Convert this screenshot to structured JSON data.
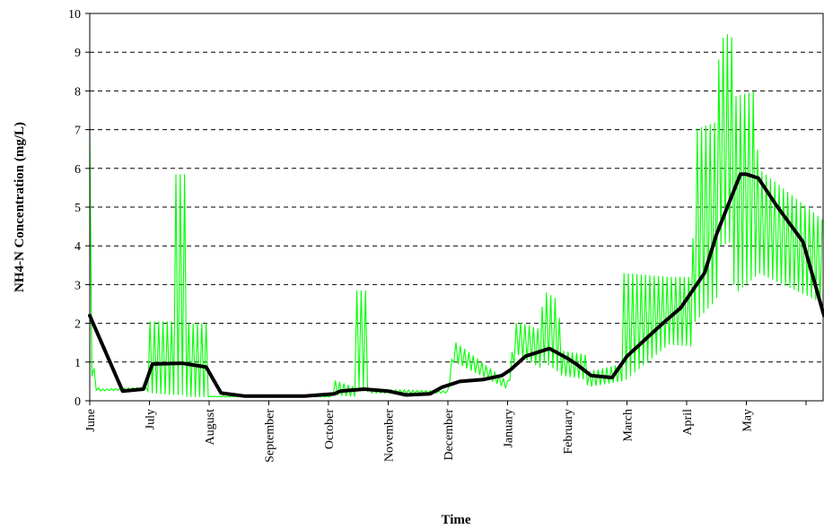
{
  "chart_data": {
    "type": "line",
    "title": "",
    "xlabel": "Time",
    "ylabel": "NH4-N Concentration (mg/L)",
    "ylim": [
      0,
      10
    ],
    "yticks": [
      0,
      1,
      2,
      3,
      4,
      5,
      6,
      7,
      8,
      9,
      10
    ],
    "grid": "horizontal dashed",
    "x_months": [
      "June",
      "July",
      "August",
      "September",
      "October",
      "November",
      "December",
      "January",
      "February",
      "March",
      "April",
      "May"
    ],
    "series": [
      {
        "color": "#00ff00",
        "style": "high-frequency oscillating envelope",
        "envelope": [
          {
            "t": 0.0,
            "lo": 1.5,
            "hi": 7.0
          },
          {
            "t": 0.05,
            "lo": 0.3,
            "hi": 1.0
          },
          {
            "t": 0.15,
            "lo": 0.25,
            "hi": 0.3
          },
          {
            "t": 0.95,
            "lo": 0.3,
            "hi": 0.35
          },
          {
            "t": 1.0,
            "lo": 0.2,
            "hi": 2.05
          },
          {
            "t": 1.38,
            "lo": 0.15,
            "hi": 2.05
          },
          {
            "t": 1.39,
            "lo": 0.15,
            "hi": 5.85
          },
          {
            "t": 1.6,
            "lo": 0.15,
            "hi": 5.85
          },
          {
            "t": 1.61,
            "lo": 0.1,
            "hi": 2.0
          },
          {
            "t": 2.0,
            "lo": 0.1,
            "hi": 2.0
          },
          {
            "t": 2.02,
            "lo": 0.1,
            "hi": 0.12
          },
          {
            "t": 4.05,
            "lo": 0.1,
            "hi": 0.12
          },
          {
            "t": 4.06,
            "lo": 0.15,
            "hi": 0.55
          },
          {
            "t": 4.45,
            "lo": 0.1,
            "hi": 0.35
          },
          {
            "t": 4.46,
            "lo": 0.35,
            "hi": 2.85
          },
          {
            "t": 4.65,
            "lo": 0.3,
            "hi": 2.85
          },
          {
            "t": 4.66,
            "lo": 0.2,
            "hi": 0.3
          },
          {
            "t": 6.0,
            "lo": 0.2,
            "hi": 0.25
          },
          {
            "t": 6.1,
            "lo": 1.0,
            "hi": 1.55
          },
          {
            "t": 7.0,
            "lo": 0.3,
            "hi": 0.5
          },
          {
            "t": 7.15,
            "lo": 1.2,
            "hi": 2.05
          },
          {
            "t": 7.55,
            "lo": 0.85,
            "hi": 1.85
          },
          {
            "t": 7.6,
            "lo": 1.0,
            "hi": 2.85
          },
          {
            "t": 7.85,
            "lo": 0.75,
            "hi": 2.6
          },
          {
            "t": 7.9,
            "lo": 0.65,
            "hi": 1.3
          },
          {
            "t": 8.3,
            "lo": 0.55,
            "hi": 1.2
          },
          {
            "t": 8.35,
            "lo": 0.35,
            "hi": 0.75
          },
          {
            "t": 8.9,
            "lo": 0.5,
            "hi": 0.95
          },
          {
            "t": 8.95,
            "lo": 0.5,
            "hi": 3.3
          },
          {
            "t": 9.7,
            "lo": 1.45,
            "hi": 3.2
          },
          {
            "t": 10.1,
            "lo": 1.4,
            "hi": 3.2
          },
          {
            "t": 10.12,
            "lo": 2.0,
            "hi": 7.0
          },
          {
            "t": 10.5,
            "lo": 2.6,
            "hi": 7.2
          },
          {
            "t": 10.55,
            "lo": 4.0,
            "hi": 9.3
          },
          {
            "t": 10.75,
            "lo": 4.1,
            "hi": 9.55
          },
          {
            "t": 10.8,
            "lo": 2.75,
            "hi": 7.85
          },
          {
            "t": 11.15,
            "lo": 3.2,
            "hi": 8.0
          },
          {
            "t": 11.2,
            "lo": 3.3,
            "hi": 6.0
          },
          {
            "t": 12.3,
            "lo": 2.5,
            "hi": 4.65
          }
        ]
      },
      {
        "color": "#000000",
        "points": [
          {
            "t": 0.0,
            "y": 2.2
          },
          {
            "t": 0.55,
            "y": 0.25
          },
          {
            "t": 0.9,
            "y": 0.3
          },
          {
            "t": 1.05,
            "y": 0.95
          },
          {
            "t": 1.55,
            "y": 0.97
          },
          {
            "t": 1.95,
            "y": 0.87
          },
          {
            "t": 2.2,
            "y": 0.2
          },
          {
            "t": 2.6,
            "y": 0.12
          },
          {
            "t": 3.6,
            "y": 0.12
          },
          {
            "t": 4.1,
            "y": 0.18
          },
          {
            "t": 4.2,
            "y": 0.25
          },
          {
            "t": 4.6,
            "y": 0.3
          },
          {
            "t": 5.0,
            "y": 0.25
          },
          {
            "t": 5.3,
            "y": 0.15
          },
          {
            "t": 5.7,
            "y": 0.18
          },
          {
            "t": 5.9,
            "y": 0.35
          },
          {
            "t": 6.2,
            "y": 0.5
          },
          {
            "t": 6.6,
            "y": 0.55
          },
          {
            "t": 6.9,
            "y": 0.65
          },
          {
            "t": 7.05,
            "y": 0.8
          },
          {
            "t": 7.3,
            "y": 1.15
          },
          {
            "t": 7.7,
            "y": 1.35
          },
          {
            "t": 8.0,
            "y": 1.1
          },
          {
            "t": 8.15,
            "y": 0.95
          },
          {
            "t": 8.4,
            "y": 0.65
          },
          {
            "t": 8.75,
            "y": 0.6
          },
          {
            "t": 9.0,
            "y": 1.15
          },
          {
            "t": 9.6,
            "y": 2.0
          },
          {
            "t": 9.9,
            "y": 2.4
          },
          {
            "t": 10.3,
            "y": 3.3
          },
          {
            "t": 10.5,
            "y": 4.3
          },
          {
            "t": 10.9,
            "y": 5.85
          },
          {
            "t": 11.0,
            "y": 5.85
          },
          {
            "t": 11.2,
            "y": 5.75
          },
          {
            "t": 11.5,
            "y": 5.05
          },
          {
            "t": 11.95,
            "y": 4.1
          },
          {
            "t": 12.3,
            "y": 2.2
          }
        ]
      }
    ]
  }
}
